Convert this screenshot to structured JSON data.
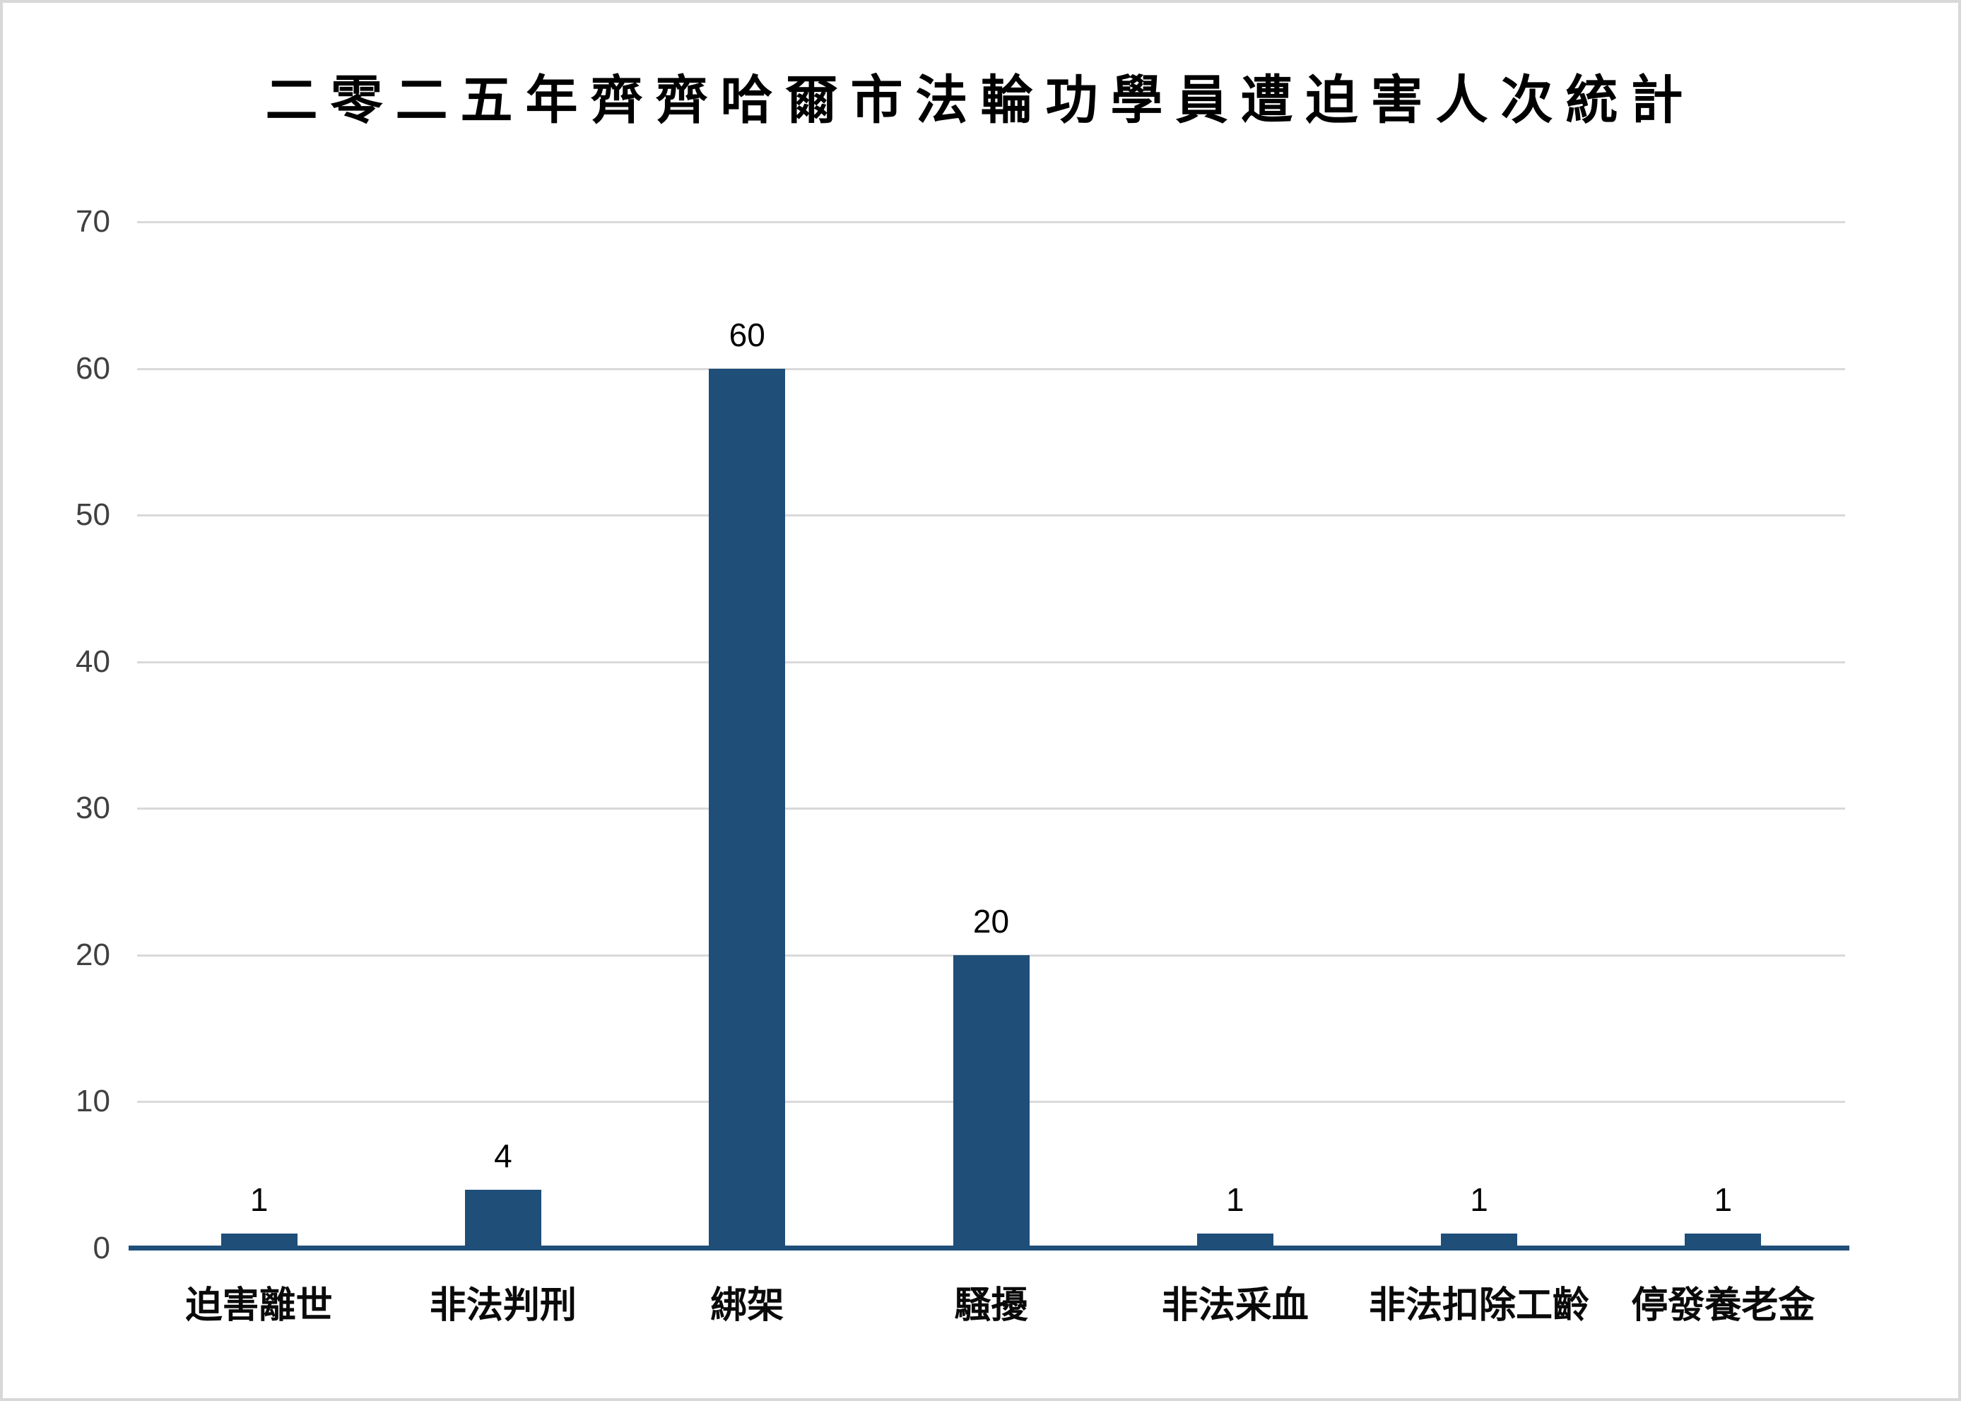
{
  "chart_data": {
    "type": "bar",
    "title": "二零二五年齊齊哈爾市法輪功學員遭迫害人次統計",
    "categories": [
      "迫害離世",
      "非法判刑",
      "綁架",
      "騷擾",
      "非法采血",
      "非法扣除工齡",
      "停發養老金"
    ],
    "values": [
      1,
      4,
      60,
      20,
      1,
      1,
      1
    ],
    "value_labels": [
      "1",
      "4",
      "60",
      "20",
      "1",
      "1",
      "1"
    ],
    "xlabel": "",
    "ylabel": "",
    "ylim": [
      0,
      70
    ],
    "yticks": [
      0,
      10,
      20,
      30,
      40,
      50,
      60,
      70
    ],
    "grid": "horizontal-on",
    "legend": "none",
    "colors": {
      "bar": "#1F4E79",
      "axis_line": "#1F4E79",
      "gridline": "#D9D9D9",
      "tick_label": "#404040",
      "value_label": "#000000",
      "title": "#000000",
      "background": "#FFFFFF",
      "border": "#D8D8D8"
    }
  }
}
